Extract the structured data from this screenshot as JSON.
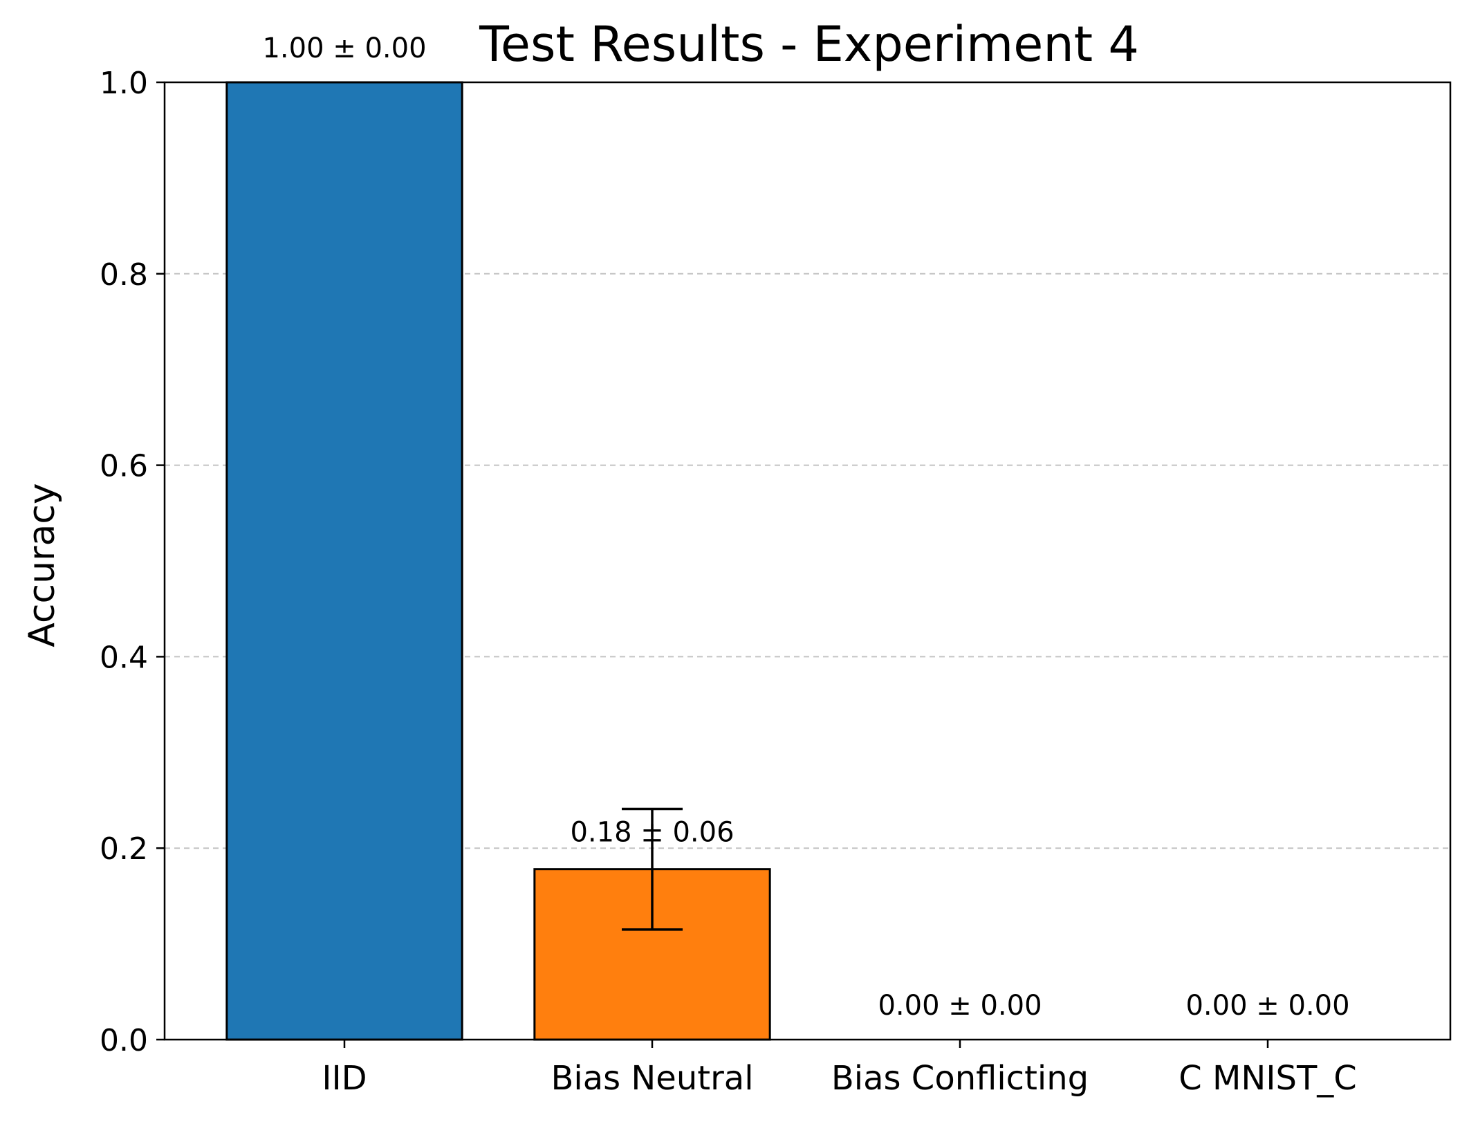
{
  "chart_data": {
    "type": "bar",
    "title": "Test Results - Experiment 4",
    "xlabel": "",
    "ylabel": "Accuracy",
    "ylim": [
      0,
      1.0
    ],
    "yticks": [
      "0.0",
      "0.2",
      "0.4",
      "0.6",
      "0.8",
      "1.0"
    ],
    "grid": "y-dashed",
    "categories": [
      "IID",
      "Bias Neutral",
      "Bias Conflicting",
      "C MNIST_C"
    ],
    "values": [
      1.0,
      0.178,
      0.0,
      0.0
    ],
    "errors": [
      0.0,
      0.063,
      0.0,
      0.0
    ],
    "data_labels": [
      "1.00 ± 0.00",
      "0.18 ± 0.06",
      "0.00 ± 0.00",
      "0.00 ± 0.00"
    ],
    "colors": [
      "#1f77b4",
      "#ff7f0e",
      "#2ca02c",
      "#d62728"
    ]
  }
}
